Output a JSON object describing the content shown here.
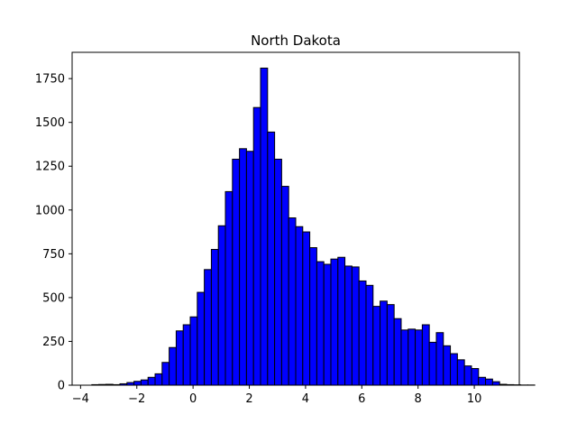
{
  "chart_data": {
    "type": "bar",
    "title": "North Dakota",
    "xlabel": "",
    "ylabel": "",
    "xlim": [
      -4.3,
      11.6
    ],
    "ylim": [
      0,
      1900
    ],
    "grid": false,
    "bar_color": "#0000ff",
    "edge_color": "#000000",
    "bin_start": -3.6,
    "bin_width": 0.25,
    "values": [
      3,
      4,
      5,
      3,
      8,
      15,
      22,
      30,
      45,
      65,
      130,
      215,
      310,
      345,
      390,
      530,
      660,
      775,
      910,
      1105,
      1290,
      1350,
      1335,
      1585,
      1810,
      1445,
      1290,
      1135,
      955,
      905,
      875,
      785,
      705,
      690,
      720,
      730,
      680,
      675,
      595,
      570,
      450,
      480,
      460,
      380,
      315,
      320,
      315,
      345,
      245,
      300,
      225,
      180,
      145,
      110,
      95,
      45,
      35,
      20,
      5,
      3,
      2,
      1,
      1
    ],
    "x_ticks": [
      -4,
      -2,
      0,
      2,
      4,
      6,
      8,
      10
    ],
    "x_tick_labels": [
      "−4",
      "−2",
      "0",
      "2",
      "4",
      "6",
      "8",
      "10"
    ],
    "y_ticks": [
      0,
      250,
      500,
      750,
      1000,
      1250,
      1500,
      1750
    ],
    "y_tick_labels": [
      "0",
      "250",
      "500",
      "750",
      "1000",
      "1250",
      "1500",
      "1750"
    ]
  }
}
